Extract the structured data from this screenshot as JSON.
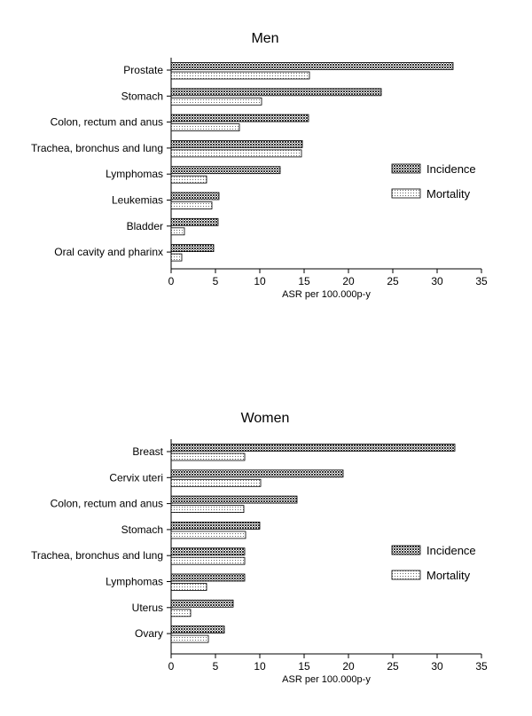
{
  "chart_data": [
    {
      "type": "bar",
      "orientation": "horizontal",
      "title": "Men",
      "xlabel": "ASR per 100.000p-y",
      "ylabel": "",
      "xlim": [
        0,
        35
      ],
      "xticks": [
        0,
        5,
        10,
        15,
        20,
        25,
        30,
        35
      ],
      "grid": false,
      "legend_position": "right",
      "categories": [
        "Prostate",
        "Stomach",
        "Colon, rectum and anus",
        "Trachea, bronchus and lung",
        "Lymphomas",
        "Leukemias",
        "Bladder",
        "Oral cavity and pharinx"
      ],
      "series": [
        {
          "name": "Incidence",
          "values": [
            31.8,
            23.7,
            15.5,
            14.8,
            12.3,
            5.4,
            5.3,
            4.8
          ]
        },
        {
          "name": "Mortality",
          "values": [
            15.6,
            10.2,
            7.7,
            14.7,
            4.0,
            4.6,
            1.5,
            1.2
          ]
        }
      ]
    },
    {
      "type": "bar",
      "orientation": "horizontal",
      "title": "Women",
      "xlabel": "ASR per 100.000p-y",
      "ylabel": "",
      "xlim": [
        0,
        35
      ],
      "xticks": [
        0,
        5,
        10,
        15,
        20,
        25,
        30,
        35
      ],
      "grid": false,
      "legend_position": "right",
      "categories": [
        "Breast",
        "Cervix uteri",
        "Colon, rectum and anus",
        "Stomach",
        "Trachea, bronchus and lung",
        "Lymphomas",
        "Uterus",
        "Ovary"
      ],
      "series": [
        {
          "name": "Incidence",
          "values": [
            32.0,
            19.4,
            14.2,
            10.0,
            8.3,
            8.3,
            7.0,
            6.0
          ]
        },
        {
          "name": "Mortality",
          "values": [
            8.3,
            10.1,
            8.2,
            8.4,
            8.3,
            4.0,
            2.2,
            4.2
          ]
        }
      ]
    }
  ]
}
